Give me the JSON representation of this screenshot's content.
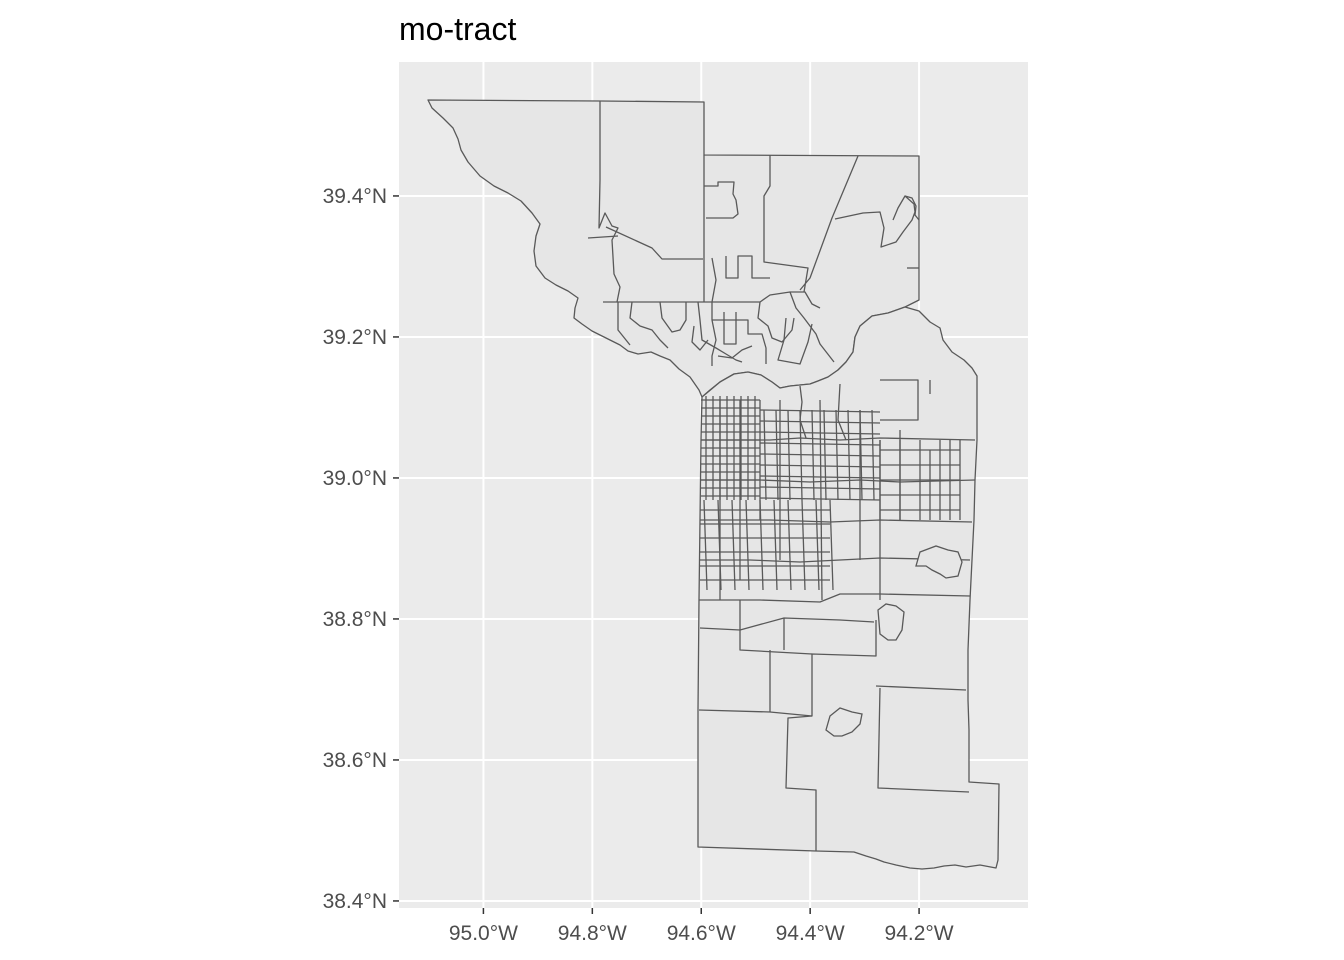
{
  "title": "mo-tract",
  "colors": {
    "panel_background": "#ebebeb",
    "grid": "#ffffff",
    "tract_fill": "#e6e6e6",
    "tract_border": "#595959",
    "axis_text": "#4d4d4d"
  },
  "axes": {
    "x_ticks": [
      {
        "label": "95.0°W",
        "lon": -95.0
      },
      {
        "label": "94.8°W",
        "lon": -94.8
      },
      {
        "label": "94.6°W",
        "lon": -94.6
      },
      {
        "label": "94.4°W",
        "lon": -94.4
      },
      {
        "label": "94.2°W",
        "lon": -94.2
      }
    ],
    "y_ticks": [
      {
        "label": "39.4°N",
        "lat": 39.4
      },
      {
        "label": "39.2°N",
        "lat": 39.2
      },
      {
        "label": "39.0°N",
        "lat": 39.0
      },
      {
        "label": "38.8°N",
        "lat": 38.8
      },
      {
        "label": "38.6°N",
        "lat": 38.6
      },
      {
        "label": "38.4°N",
        "lat": 38.4
      }
    ],
    "x_range": [
      -95.155,
      -94.0
    ],
    "y_range": [
      38.39,
      39.59
    ]
  }
}
